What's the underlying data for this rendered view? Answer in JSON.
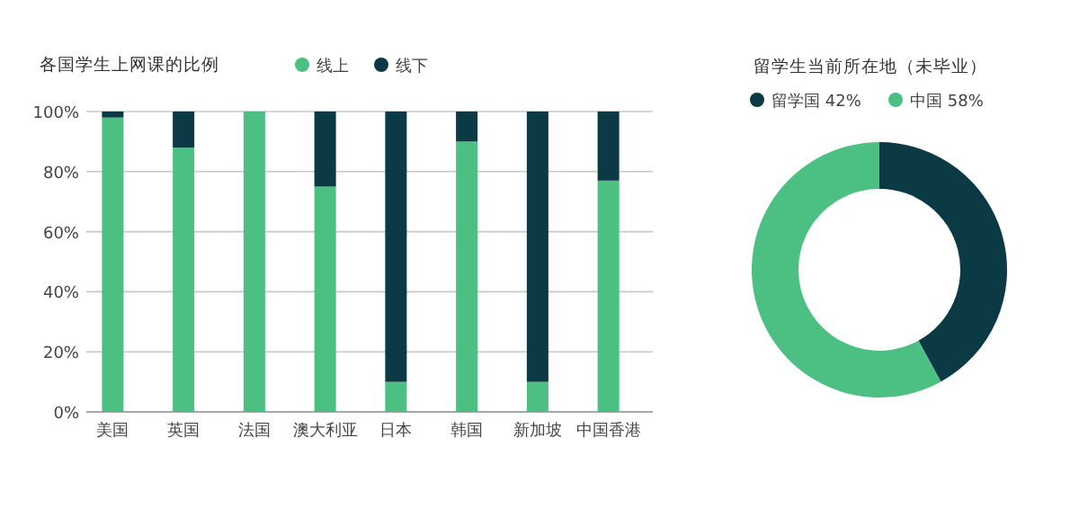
{
  "chart_data": [
    {
      "type": "bar",
      "title": "各国学生上网课的比例",
      "stacked": true,
      "categories": [
        "美国",
        "英国",
        "法国",
        "澳大利亚",
        "日本",
        "韩国",
        "新加坡",
        "中国香港"
      ],
      "series": [
        {
          "name": "线上",
          "color": "#4cc083",
          "values": [
            98,
            88,
            100,
            75,
            10,
            90,
            10,
            77
          ]
        },
        {
          "name": "线下",
          "color": "#0b3a45",
          "values": [
            2,
            12,
            0,
            25,
            90,
            10,
            90,
            23
          ]
        }
      ],
      "ylim": [
        0,
        100
      ],
      "yticks": [
        {
          "value": 0,
          "label": "0%"
        },
        {
          "value": 20,
          "label": "20%"
        },
        {
          "value": 40,
          "label": "40%"
        },
        {
          "value": 60,
          "label": "60%"
        },
        {
          "value": 80,
          "label": "80%"
        },
        {
          "value": 100,
          "label": "100%"
        }
      ],
      "grid": "y",
      "legend": "top"
    },
    {
      "type": "donut",
      "title": "留学生当前所在地（未毕业）",
      "categories": [
        "留学国",
        "中国"
      ],
      "values": [
        42,
        58
      ],
      "colors": [
        "#0b3a45",
        "#4cc083"
      ],
      "value_labels": [
        "42%",
        "58%"
      ],
      "legend": "top left"
    }
  ]
}
